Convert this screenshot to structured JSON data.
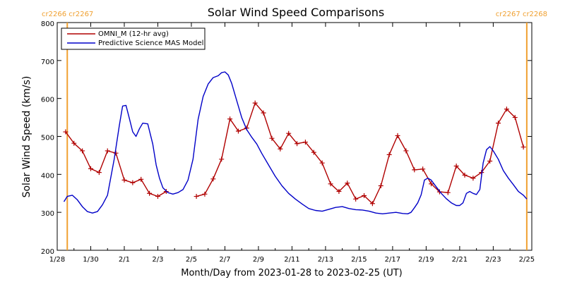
{
  "chart_data": {
    "type": "line",
    "title": "Solar Wind Speed Comparisons",
    "xlabel": "Month/Day from 2023-01-28 to 2023-02-25 (UT)",
    "ylabel": "Solar Wind Speed (km/s)",
    "xlim": [
      0,
      28.3
    ],
    "ylim": [
      200,
      800
    ],
    "x_ticks": [
      {
        "x": 0,
        "label": "1/28"
      },
      {
        "x": 2,
        "label": "1/30"
      },
      {
        "x": 4,
        "label": "2/1"
      },
      {
        "x": 6,
        "label": "2/3"
      },
      {
        "x": 8,
        "label": "2/5"
      },
      {
        "x": 10,
        "label": "2/7"
      },
      {
        "x": 12,
        "label": "2/9"
      },
      {
        "x": 14,
        "label": "2/11"
      },
      {
        "x": 16,
        "label": "2/13"
      },
      {
        "x": 18,
        "label": "2/15"
      },
      {
        "x": 20,
        "label": "2/17"
      },
      {
        "x": 22,
        "label": "2/19"
      },
      {
        "x": 24,
        "label": "2/21"
      },
      {
        "x": 26,
        "label": "2/23"
      },
      {
        "x": 28,
        "label": "2/25"
      }
    ],
    "y_ticks": [
      200,
      300,
      400,
      500,
      600,
      700,
      800
    ],
    "grid": false,
    "legend_position": "top-left",
    "carrington_markers": [
      {
        "x": 0.6,
        "label": "cr2266 cr2267",
        "label_side": "top-left"
      },
      {
        "x": 28.0,
        "label": "cr2267 cr2268",
        "label_side": "top-right"
      }
    ],
    "marker_color": "#f0a030",
    "series": [
      {
        "name": "OMNI_M (12-hr avg)",
        "color": "#b00000",
        "marker": "plus",
        "segments": [
          {
            "x": [
              0.5,
              1.0,
              1.5,
              2.0,
              2.5,
              3.0,
              3.5,
              4.0,
              4.5,
              5.0,
              5.5,
              6.0,
              6.5
            ],
            "y": [
              512,
              482,
              462,
              415,
              405,
              462,
              456,
              385,
              378,
              387,
              350,
              342,
              355
            ]
          },
          {
            "x": [
              8.3,
              8.8,
              9.3,
              9.8,
              10.3,
              10.8,
              11.3,
              11.8,
              12.3,
              12.8,
              13.3,
              13.8,
              14.3,
              14.8,
              15.3,
              15.8,
              16.3,
              16.8,
              17.3,
              17.8,
              18.3,
              18.8,
              19.3,
              19.8,
              20.3,
              20.8,
              21.3,
              21.8,
              22.3,
              22.8,
              23.3,
              23.8,
              24.3,
              24.8,
              25.3,
              25.8,
              26.3,
              26.8,
              27.3,
              27.8
            ],
            "y": [
              342,
              348,
              388,
              440,
              546,
              514,
              522,
              588,
              562,
              495,
              467,
              508,
              481,
              485,
              458,
              430,
              375,
              355,
              377,
              335,
              344,
              323,
              370,
              452,
              502,
              462,
              412,
              414,
              375,
              354,
              352,
              422,
              398,
              390,
              405,
              435,
              535,
              572,
              550,
              472
            ]
          }
        ]
      },
      {
        "name": "Predictive Science MAS Model",
        "color": "#0000c8",
        "marker": "none",
        "segments": [
          {
            "x": [
              0.4,
              0.6,
              0.9,
              1.2,
              1.5,
              1.8,
              2.1,
              2.4,
              2.7,
              3.0,
              3.4,
              3.7,
              3.9,
              4.1,
              4.3,
              4.5,
              4.7,
              4.9,
              5.1,
              5.4,
              5.7,
              5.9,
              6.1,
              6.3,
              6.6,
              6.9,
              7.2,
              7.5,
              7.8,
              8.1,
              8.4,
              8.7,
              9.0,
              9.3,
              9.6,
              9.8,
              10.0,
              10.2,
              10.4,
              10.7,
              11.0,
              11.3,
              11.6,
              11.9,
              12.2,
              12.6,
              13.0,
              13.4,
              13.8,
              14.2,
              14.6,
              15.0,
              15.4,
              15.8,
              16.2,
              16.6,
              17.0,
              17.4,
              17.8,
              18.2,
              18.6,
              19.0,
              19.4,
              19.8,
              20.2,
              20.6,
              20.9,
              21.1,
              21.3,
              21.5,
              21.7,
              21.9,
              22.1,
              22.3,
              22.6,
              22.9,
              23.2,
              23.5,
              23.8,
              24.0,
              24.2,
              24.4,
              24.6,
              24.8,
              25.0,
              25.2,
              25.4,
              25.6,
              25.8,
              26.0,
              26.3,
              26.6,
              26.9,
              27.2,
              27.5,
              27.8,
              28.0
            ],
            "y": [
              328,
              342,
              345,
              333,
              315,
              302,
              298,
              302,
              320,
              345,
              440,
              528,
              580,
              582,
              548,
              512,
              500,
              520,
              535,
              533,
              480,
              425,
              390,
              365,
              352,
              348,
              352,
              360,
              385,
              440,
              545,
              605,
              638,
              655,
              660,
              668,
              670,
              662,
              640,
              595,
              550,
              518,
              498,
              480,
              455,
              425,
              395,
              370,
              350,
              335,
              322,
              310,
              305,
              303,
              308,
              313,
              315,
              310,
              307,
              306,
              303,
              298,
              296,
              298,
              300,
              297,
              296,
              300,
              312,
              325,
              346,
              385,
              390,
              385,
              367,
              350,
              336,
              325,
              318,
              318,
              325,
              350,
              355,
              350,
              347,
              360,
              430,
              465,
              473,
              462,
              440,
              410,
              390,
              373,
              355,
              345,
              335
            ]
          }
        ]
      }
    ]
  }
}
